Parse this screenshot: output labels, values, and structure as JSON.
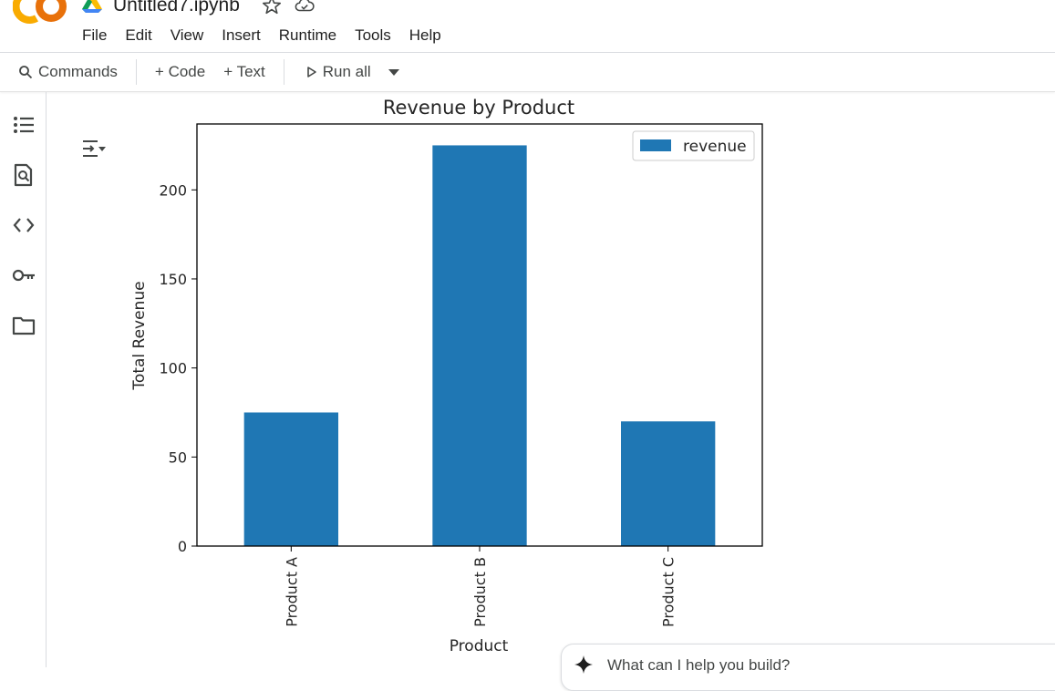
{
  "header": {
    "notebook_title": "Untitled7.ipynb",
    "menu": [
      "File",
      "Edit",
      "View",
      "Insert",
      "Runtime",
      "Tools",
      "Help"
    ]
  },
  "toolbar": {
    "commands_label": "Commands",
    "code_label": "+ Code",
    "text_label": "+ Text",
    "run_all_label": "Run all"
  },
  "sidebar": {
    "icons": [
      "table-of-contents-icon",
      "find-replace-icon",
      "code-snippets-icon",
      "secrets-key-icon",
      "files-folder-icon"
    ]
  },
  "gemini": {
    "placeholder": "What can I help you build?"
  },
  "colors": {
    "bar": "#1f77b4",
    "colab_orange": "#F9AB00",
    "colab_dark_orange": "#E8710A"
  },
  "chart_data": {
    "type": "bar",
    "title": "Revenue by Product",
    "xlabel": "Product",
    "ylabel": "Total Revenue",
    "categories": [
      "Product A",
      "Product B",
      "Product C"
    ],
    "series": [
      {
        "name": "revenue",
        "values": [
          75,
          225,
          70
        ]
      }
    ],
    "ylim": [
      0,
      237
    ],
    "yticks": [
      0,
      50,
      100,
      150,
      200
    ],
    "legend": "top-right",
    "grid": false
  }
}
